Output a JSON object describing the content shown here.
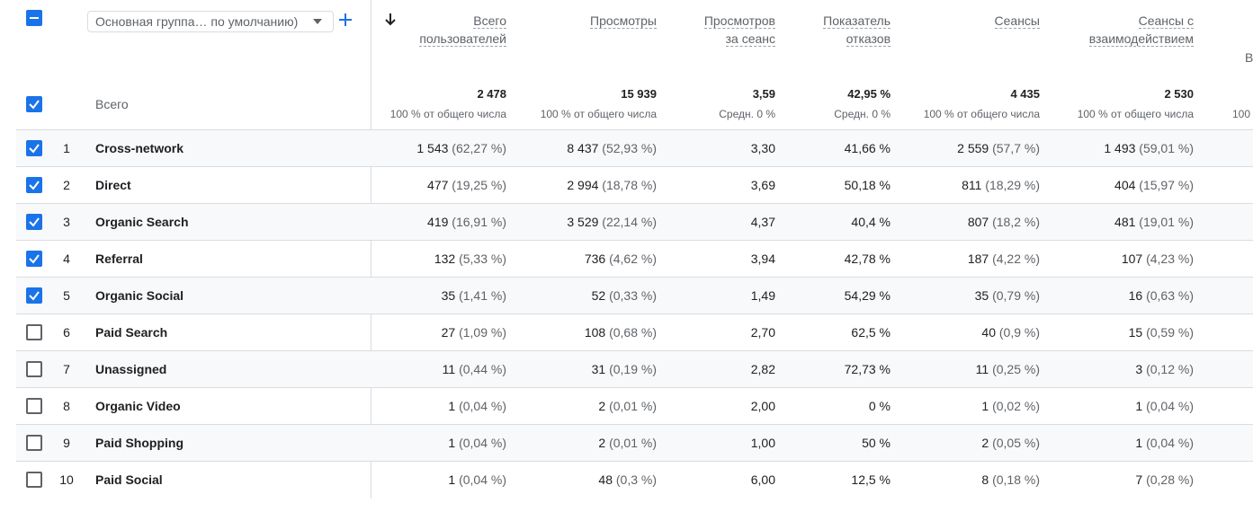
{
  "group_select": {
    "value": "Основная группа… по умолчанию)"
  },
  "total_label": "Всего",
  "columns": [
    {
      "header": [
        "Всего",
        "пользователей"
      ],
      "total": "2 478",
      "sub": "100 % от общего числа"
    },
    {
      "header": [
        "Просмотры"
      ],
      "total": "15 939",
      "sub": "100 % от общего числа"
    },
    {
      "header": [
        "Просмотров",
        "за сеанс"
      ],
      "total": "3,59",
      "sub": "Средн. 0 %"
    },
    {
      "header": [
        "Показатель",
        "отказов"
      ],
      "total": "42,95 %",
      "sub": "Средн. 0 %"
    },
    {
      "header": [
        "Сеансы"
      ],
      "total": "4 435",
      "sub": "100 % от общего числа"
    },
    {
      "header": [
        "Сеансы с",
        "взаимодействием"
      ],
      "total": "2 530",
      "sub": "100 % от общего числа"
    }
  ],
  "cut_off": {
    "header": "В",
    "sub": "100"
  },
  "rows": [
    {
      "idx": "1",
      "name": "Cross-network",
      "checked": true,
      "cells": [
        [
          "1 543",
          "(62,27 %)"
        ],
        [
          "8 437",
          "(52,93 %)"
        ],
        [
          "3,30",
          ""
        ],
        [
          "41,66 %",
          ""
        ],
        [
          "2 559",
          "(57,7 %)"
        ],
        [
          "1 493",
          "(59,01 %)"
        ]
      ]
    },
    {
      "idx": "2",
      "name": "Direct",
      "checked": true,
      "cells": [
        [
          "477",
          "(19,25 %)"
        ],
        [
          "2 994",
          "(18,78 %)"
        ],
        [
          "3,69",
          ""
        ],
        [
          "50,18 %",
          ""
        ],
        [
          "811",
          "(18,29 %)"
        ],
        [
          "404",
          "(15,97 %)"
        ]
      ]
    },
    {
      "idx": "3",
      "name": "Organic Search",
      "checked": true,
      "cells": [
        [
          "419",
          "(16,91 %)"
        ],
        [
          "3 529",
          "(22,14 %)"
        ],
        [
          "4,37",
          ""
        ],
        [
          "40,4 %",
          ""
        ],
        [
          "807",
          "(18,2 %)"
        ],
        [
          "481",
          "(19,01 %)"
        ]
      ]
    },
    {
      "idx": "4",
      "name": "Referral",
      "checked": true,
      "cells": [
        [
          "132",
          "(5,33 %)"
        ],
        [
          "736",
          "(4,62 %)"
        ],
        [
          "3,94",
          ""
        ],
        [
          "42,78 %",
          ""
        ],
        [
          "187",
          "(4,22 %)"
        ],
        [
          "107",
          "(4,23 %)"
        ]
      ]
    },
    {
      "idx": "5",
      "name": "Organic Social",
      "checked": true,
      "cells": [
        [
          "35",
          "(1,41 %)"
        ],
        [
          "52",
          "(0,33 %)"
        ],
        [
          "1,49",
          ""
        ],
        [
          "54,29 %",
          ""
        ],
        [
          "35",
          "(0,79 %)"
        ],
        [
          "16",
          "(0,63 %)"
        ]
      ]
    },
    {
      "idx": "6",
      "name": "Paid Search",
      "checked": false,
      "cells": [
        [
          "27",
          "(1,09 %)"
        ],
        [
          "108",
          "(0,68 %)"
        ],
        [
          "2,70",
          ""
        ],
        [
          "62,5 %",
          ""
        ],
        [
          "40",
          "(0,9 %)"
        ],
        [
          "15",
          "(0,59 %)"
        ]
      ]
    },
    {
      "idx": "7",
      "name": "Unassigned",
      "checked": false,
      "cells": [
        [
          "11",
          "(0,44 %)"
        ],
        [
          "31",
          "(0,19 %)"
        ],
        [
          "2,82",
          ""
        ],
        [
          "72,73 %",
          ""
        ],
        [
          "11",
          "(0,25 %)"
        ],
        [
          "3",
          "(0,12 %)"
        ]
      ]
    },
    {
      "idx": "8",
      "name": "Organic Video",
      "checked": false,
      "cells": [
        [
          "1",
          "(0,04 %)"
        ],
        [
          "2",
          "(0,01 %)"
        ],
        [
          "2,00",
          ""
        ],
        [
          "0 %",
          ""
        ],
        [
          "1",
          "(0,02 %)"
        ],
        [
          "1",
          "(0,04 %)"
        ]
      ]
    },
    {
      "idx": "9",
      "name": "Paid Shopping",
      "checked": false,
      "cells": [
        [
          "1",
          "(0,04 %)"
        ],
        [
          "2",
          "(0,01 %)"
        ],
        [
          "1,00",
          ""
        ],
        [
          "50 %",
          ""
        ],
        [
          "2",
          "(0,05 %)"
        ],
        [
          "1",
          "(0,04 %)"
        ]
      ]
    },
    {
      "idx": "10",
      "name": "Paid Social",
      "checked": false,
      "cells": [
        [
          "1",
          "(0,04 %)"
        ],
        [
          "48",
          "(0,3 %)"
        ],
        [
          "6,00",
          ""
        ],
        [
          "12,5 %",
          ""
        ],
        [
          "8",
          "(0,18 %)"
        ],
        [
          "7",
          "(0,28 %)"
        ]
      ]
    }
  ],
  "colors": {
    "accent": "#1a73e8"
  }
}
